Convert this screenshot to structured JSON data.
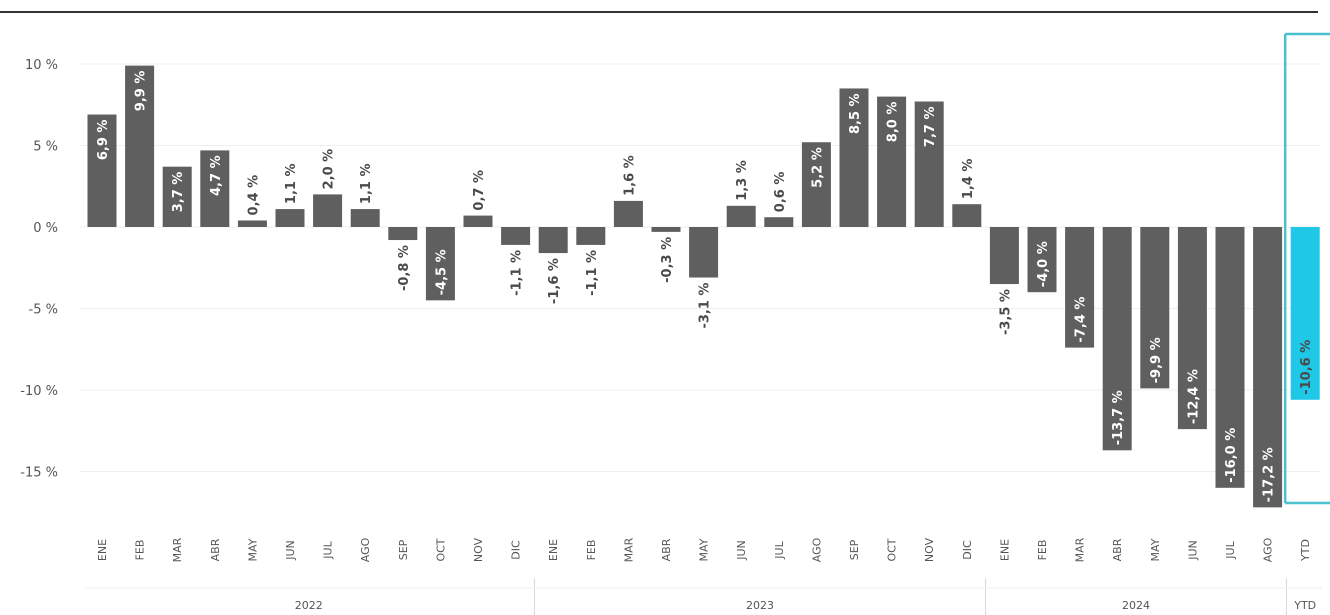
{
  "chart_data": {
    "type": "bar",
    "title": "",
    "xlabel": "",
    "ylabel": "",
    "ylim": [
      -19.5,
      12
    ],
    "y_ticks": [
      "10 %",
      "5 %",
      "0 %",
      "-5 %",
      "-10 %",
      "-15 %"
    ],
    "y_tick_values": [
      10,
      5,
      0,
      -5,
      -10,
      -15
    ],
    "grid": "horizontal",
    "categories": [
      "ENE",
      "FEB",
      "MAR",
      "ABR",
      "MAY",
      "JUN",
      "JUL",
      "AGO",
      "SEP",
      "OCT",
      "NOV",
      "DIC",
      "ENE",
      "FEB",
      "MAR",
      "ABR",
      "MAY",
      "JUN",
      "JUL",
      "AGO",
      "SEP",
      "OCT",
      "NOV",
      "DIC",
      "ENE",
      "FEB",
      "MAR",
      "ABR",
      "MAY",
      "JUN",
      "JUL",
      "AGO",
      "YTD"
    ],
    "values": [
      6.9,
      9.9,
      3.7,
      4.7,
      0.4,
      1.1,
      2.0,
      1.1,
      -0.8,
      -4.5,
      0.7,
      -1.1,
      -1.6,
      -1.1,
      1.6,
      -0.3,
      -3.1,
      1.3,
      0.6,
      5.2,
      8.5,
      8.0,
      7.7,
      1.4,
      -3.5,
      -4.0,
      -7.4,
      -13.7,
      -9.9,
      -12.4,
      -16.0,
      -17.2,
      -10.6
    ],
    "labels": [
      "6,9 %",
      "9,9 %",
      "3,7 %",
      "4,7 %",
      "0,4 %",
      "1,1 %",
      "2,0 %",
      "1,1 %",
      "-0,8 %",
      "-4,5 %",
      "0,7 %",
      "-1,1 %",
      "-1,6 %",
      "-1,1 %",
      "1,6 %",
      "-0,3 %",
      "-3,1 %",
      "1,3 %",
      "0,6 %",
      "5,2 %",
      "8,5 %",
      "8,0 %",
      "7,7 %",
      "1,4 %",
      "-3,5 %",
      "-4,0 %",
      "-7,4 %",
      "-13,7 %",
      "-9,9 %",
      "-12,4 %",
      "-16,0 %",
      "-17,2 %",
      "-10,6 %"
    ],
    "groups": [
      {
        "label": "2022",
        "start": 0,
        "end": 11
      },
      {
        "label": "2023",
        "start": 12,
        "end": 23
      },
      {
        "label": "2024",
        "start": 24,
        "end": 31
      },
      {
        "label": "YTD",
        "start": 32,
        "end": 32
      }
    ],
    "colors": {
      "bar": "#5f5f5f",
      "highlight_bar": "#1ec8e6",
      "highlight_frame": "#49c1cf",
      "label": "#4a4a4a",
      "inside_label": "#ffffff",
      "grid": "#efefef",
      "top_rule": "#333333"
    },
    "highlight_index": 32
  }
}
